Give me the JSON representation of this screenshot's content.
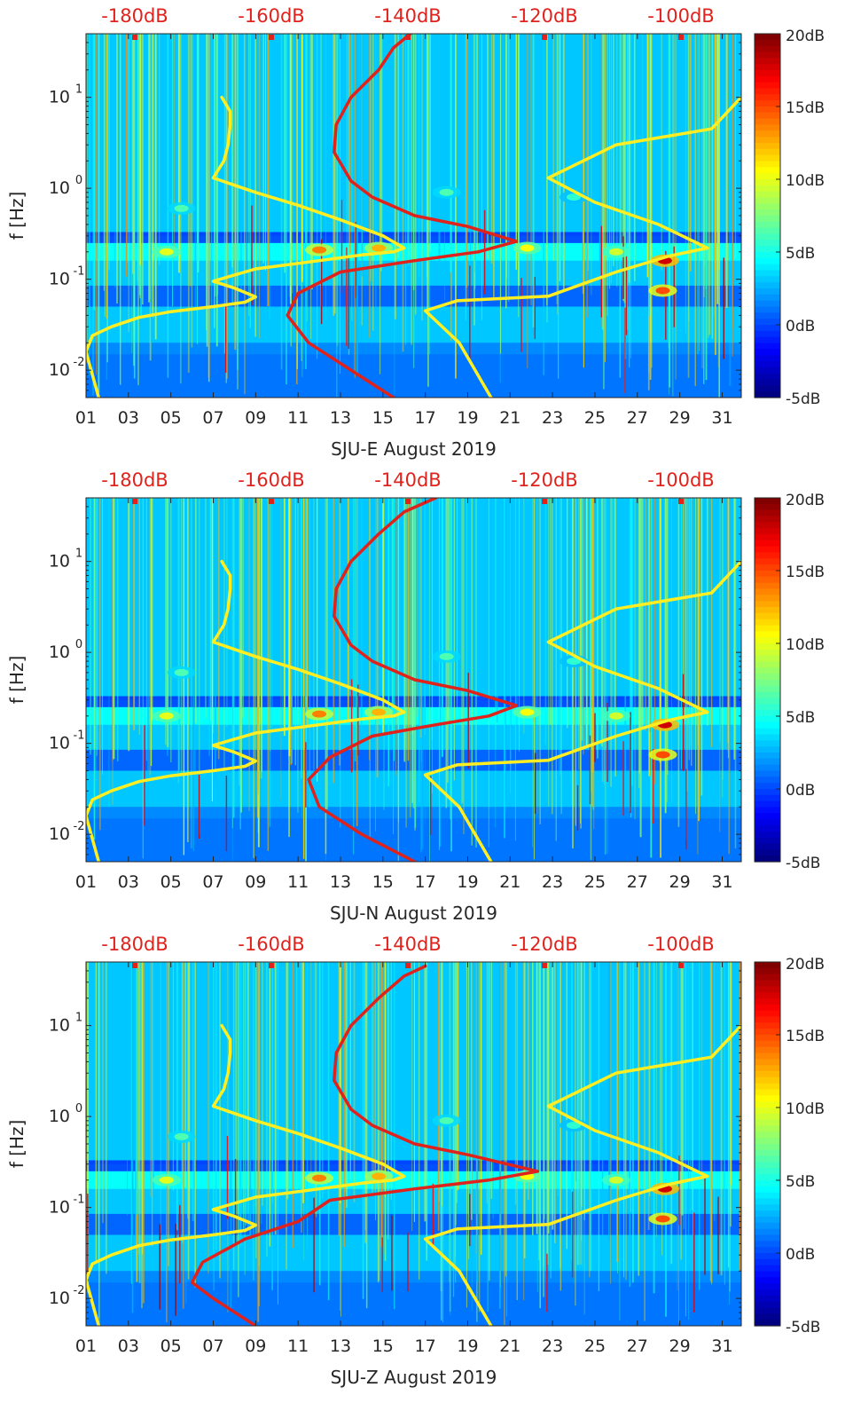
{
  "chart_data": [
    {
      "type": "heatmap",
      "station_label": "SJU-E August 2019",
      "ylabel": "f [Hz]",
      "x_tick_labels": [
        "01",
        "03",
        "05",
        "07",
        "09",
        "11",
        "13",
        "15",
        "17",
        "19",
        "21",
        "23",
        "25",
        "27",
        "29",
        "31"
      ],
      "x_range_days": [
        1,
        31.9
      ],
      "y_tick_labels": [
        "10-2",
        "10-1",
        "100",
        "101"
      ],
      "y_range_hz": [
        0.005,
        50
      ],
      "y_scale": "log",
      "top_axis_labels": [
        "-180dB",
        "-160dB",
        "-140dB",
        "-120dB",
        "-100dB"
      ],
      "colorbar_labels": [
        "20dB",
        "15dB",
        "10dB",
        "5dB",
        "0dB",
        "-5dB"
      ],
      "colorbar_range_db": [
        -5,
        20
      ],
      "colormap": "jet",
      "series": [
        {
          "color": "#ffee22",
          "points": [
            [
              1.6,
              0.005
            ],
            [
              1.0,
              0.016
            ],
            [
              1.3,
              0.024
            ],
            [
              2.2,
              0.03
            ],
            [
              3.5,
              0.038
            ],
            [
              5.0,
              0.044
            ],
            [
              7.0,
              0.05
            ],
            [
              8.5,
              0.056
            ],
            [
              9.0,
              0.064
            ],
            [
              8.0,
              0.08
            ],
            [
              7.0,
              0.095
            ],
            [
              9.0,
              0.13
            ],
            [
              12.0,
              0.16
            ],
            [
              14.0,
              0.185
            ],
            [
              15.5,
              0.2
            ],
            [
              16.0,
              0.22
            ],
            [
              15.0,
              0.3
            ],
            [
              13.0,
              0.45
            ],
            [
              11.0,
              0.65
            ],
            [
              9.0,
              0.9
            ],
            [
              7.0,
              1.3
            ],
            [
              7.5,
              2.0
            ],
            [
              7.7,
              3.0
            ],
            [
              7.8,
              5.0
            ],
            [
              7.8,
              7.0
            ],
            [
              7.4,
              10.0
            ]
          ]
        },
        {
          "color": "#ffee22",
          "points": [
            [
              20.1,
              0.005
            ],
            [
              18.6,
              0.02
            ],
            [
              17.0,
              0.045
            ],
            [
              18.5,
              0.058
            ],
            [
              22.8,
              0.065
            ],
            [
              26.0,
              0.12
            ],
            [
              28.5,
              0.18
            ],
            [
              30.3,
              0.22
            ],
            [
              28.0,
              0.4
            ],
            [
              25.0,
              0.7
            ],
            [
              22.8,
              1.3
            ],
            [
              26.0,
              3.0
            ],
            [
              30.5,
              4.5
            ],
            [
              31.9,
              10.0
            ]
          ]
        },
        {
          "color": "#e0221c",
          "points": [
            [
              15.5,
              0.005
            ],
            [
              13.5,
              0.01
            ],
            [
              11.5,
              0.02
            ],
            [
              10.5,
              0.04
            ],
            [
              11.0,
              0.07
            ],
            [
              13.0,
              0.12
            ],
            [
              16.5,
              0.16
            ],
            [
              19.5,
              0.2
            ],
            [
              21.3,
              0.26
            ],
            [
              19.0,
              0.38
            ],
            [
              16.5,
              0.5
            ],
            [
              14.5,
              0.8
            ],
            [
              13.5,
              1.2
            ],
            [
              12.7,
              2.5
            ],
            [
              12.8,
              5.0
            ],
            [
              13.5,
              10.0
            ],
            [
              14.8,
              20.0
            ],
            [
              15.5,
              35.0
            ],
            [
              16.3,
              50.0
            ]
          ]
        }
      ]
    },
    {
      "type": "heatmap",
      "station_label": "SJU-N August 2019",
      "ylabel": "f [Hz]",
      "x_tick_labels": [
        "01",
        "03",
        "05",
        "07",
        "09",
        "11",
        "13",
        "15",
        "17",
        "19",
        "21",
        "23",
        "25",
        "27",
        "29",
        "31"
      ],
      "x_range_days": [
        1,
        31.9
      ],
      "y_tick_labels": [
        "10-2",
        "10-1",
        "100",
        "101"
      ],
      "y_range_hz": [
        0.005,
        50
      ],
      "y_scale": "log",
      "top_axis_labels": [
        "-180dB",
        "-160dB",
        "-140dB",
        "-120dB",
        "-100dB"
      ],
      "colorbar_labels": [
        "20dB",
        "15dB",
        "10dB",
        "5dB",
        "0dB",
        "-5dB"
      ],
      "colorbar_range_db": [
        -5,
        20
      ],
      "colormap": "jet",
      "series": [
        {
          "color": "#ffee22",
          "points": [
            [
              1.6,
              0.005
            ],
            [
              1.0,
              0.016
            ],
            [
              1.3,
              0.024
            ],
            [
              2.2,
              0.03
            ],
            [
              3.5,
              0.038
            ],
            [
              5.0,
              0.044
            ],
            [
              7.0,
              0.05
            ],
            [
              8.5,
              0.056
            ],
            [
              9.0,
              0.064
            ],
            [
              8.0,
              0.08
            ],
            [
              7.0,
              0.095
            ],
            [
              9.0,
              0.13
            ],
            [
              12.0,
              0.16
            ],
            [
              14.0,
              0.185
            ],
            [
              15.5,
              0.2
            ],
            [
              16.0,
              0.22
            ],
            [
              15.0,
              0.3
            ],
            [
              13.0,
              0.45
            ],
            [
              11.0,
              0.65
            ],
            [
              9.0,
              0.9
            ],
            [
              7.0,
              1.3
            ],
            [
              7.5,
              2.0
            ],
            [
              7.7,
              3.0
            ],
            [
              7.8,
              5.0
            ],
            [
              7.8,
              7.0
            ],
            [
              7.4,
              10.0
            ]
          ]
        },
        {
          "color": "#ffee22",
          "points": [
            [
              20.1,
              0.005
            ],
            [
              18.6,
              0.02
            ],
            [
              17.0,
              0.045
            ],
            [
              18.5,
              0.058
            ],
            [
              22.8,
              0.065
            ],
            [
              26.0,
              0.12
            ],
            [
              28.5,
              0.18
            ],
            [
              30.3,
              0.22
            ],
            [
              28.0,
              0.4
            ],
            [
              25.0,
              0.7
            ],
            [
              22.8,
              1.3
            ],
            [
              26.0,
              3.0
            ],
            [
              30.5,
              4.5
            ],
            [
              31.9,
              10.0
            ]
          ]
        },
        {
          "color": "#e0221c",
          "points": [
            [
              16.5,
              0.005
            ],
            [
              14.0,
              0.01
            ],
            [
              12.0,
              0.02
            ],
            [
              11.5,
              0.04
            ],
            [
              12.5,
              0.07
            ],
            [
              14.5,
              0.12
            ],
            [
              17.5,
              0.16
            ],
            [
              20.0,
              0.2
            ],
            [
              21.3,
              0.26
            ],
            [
              19.0,
              0.38
            ],
            [
              16.5,
              0.5
            ],
            [
              14.5,
              0.8
            ],
            [
              13.5,
              1.2
            ],
            [
              12.7,
              2.5
            ],
            [
              12.8,
              5.0
            ],
            [
              13.5,
              10.0
            ],
            [
              14.8,
              20.0
            ],
            [
              16.0,
              35.0
            ],
            [
              17.5,
              50.0
            ]
          ]
        }
      ]
    },
    {
      "type": "heatmap",
      "station_label": "SJU-Z August 2019",
      "ylabel": "f [Hz]",
      "x_tick_labels": [
        "01",
        "03",
        "05",
        "07",
        "09",
        "11",
        "13",
        "15",
        "17",
        "19",
        "21",
        "23",
        "25",
        "27",
        "29",
        "31"
      ],
      "x_range_days": [
        1,
        31.9
      ],
      "y_tick_labels": [
        "10-2",
        "10-1",
        "100",
        "101"
      ],
      "y_range_hz": [
        0.005,
        50
      ],
      "y_scale": "log",
      "top_axis_labels": [
        "-180dB",
        "-160dB",
        "-140dB",
        "-120dB",
        "-100dB"
      ],
      "colorbar_labels": [
        "20dB",
        "15dB",
        "10dB",
        "5dB",
        "0dB",
        "-5dB"
      ],
      "colorbar_range_db": [
        -5,
        20
      ],
      "colormap": "jet",
      "series": [
        {
          "color": "#ffee22",
          "points": [
            [
              1.6,
              0.005
            ],
            [
              1.0,
              0.016
            ],
            [
              1.3,
              0.024
            ],
            [
              2.2,
              0.03
            ],
            [
              3.5,
              0.038
            ],
            [
              5.0,
              0.044
            ],
            [
              7.0,
              0.05
            ],
            [
              8.5,
              0.056
            ],
            [
              9.0,
              0.064
            ],
            [
              8.0,
              0.08
            ],
            [
              7.0,
              0.095
            ],
            [
              9.0,
              0.13
            ],
            [
              12.0,
              0.16
            ],
            [
              14.0,
              0.185
            ],
            [
              15.5,
              0.2
            ],
            [
              16.0,
              0.22
            ],
            [
              15.0,
              0.3
            ],
            [
              13.0,
              0.45
            ],
            [
              11.0,
              0.65
            ],
            [
              9.0,
              0.9
            ],
            [
              7.0,
              1.3
            ],
            [
              7.5,
              2.0
            ],
            [
              7.7,
              3.0
            ],
            [
              7.8,
              5.0
            ],
            [
              7.8,
              7.0
            ],
            [
              7.4,
              10.0
            ]
          ]
        },
        {
          "color": "#ffee22",
          "points": [
            [
              20.1,
              0.005
            ],
            [
              18.6,
              0.02
            ],
            [
              17.0,
              0.045
            ],
            [
              18.5,
              0.058
            ],
            [
              22.8,
              0.065
            ],
            [
              26.0,
              0.12
            ],
            [
              28.5,
              0.18
            ],
            [
              30.3,
              0.22
            ],
            [
              28.0,
              0.4
            ],
            [
              25.0,
              0.7
            ],
            [
              22.8,
              1.3
            ],
            [
              26.0,
              3.0
            ],
            [
              30.5,
              4.5
            ],
            [
              31.9,
              10.0
            ]
          ]
        },
        {
          "color": "#e0221c",
          "points": [
            [
              9.0,
              0.005
            ],
            [
              7.0,
              0.01
            ],
            [
              6.0,
              0.015
            ],
            [
              6.5,
              0.025
            ],
            [
              8.5,
              0.045
            ],
            [
              11.0,
              0.07
            ],
            [
              12.5,
              0.12
            ],
            [
              16.5,
              0.16
            ],
            [
              20.0,
              0.2
            ],
            [
              22.3,
              0.25
            ],
            [
              19.0,
              0.38
            ],
            [
              16.5,
              0.5
            ],
            [
              14.5,
              0.8
            ],
            [
              13.5,
              1.2
            ],
            [
              12.7,
              2.5
            ],
            [
              12.8,
              5.0
            ],
            [
              13.5,
              10.0
            ],
            [
              14.8,
              20.0
            ],
            [
              16.0,
              35.0
            ],
            [
              17.0,
              45.0
            ]
          ]
        }
      ]
    }
  ]
}
